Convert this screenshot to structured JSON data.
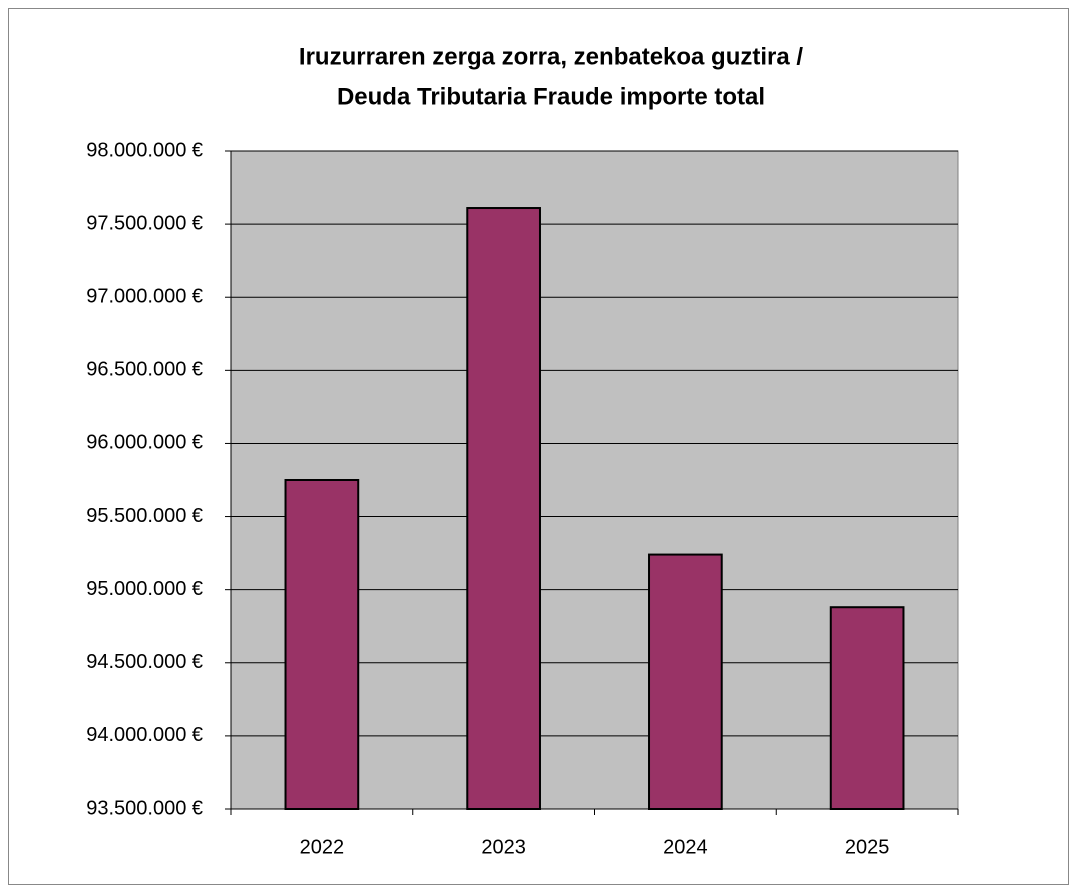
{
  "chart_data": {
    "type": "bar",
    "title": [
      "Iruzurraren zerga zorra, zenbatekoa guztira /",
      "Deuda Tributaria Fraude importe total"
    ],
    "categories": [
      "2022",
      "2023",
      "2024",
      "2025"
    ],
    "values": [
      95750000,
      97610000,
      95240000,
      94880000
    ],
    "color": "#993366",
    "ylim": [
      93500000,
      98000000
    ],
    "yticks": [
      {
        "value": 93500000,
        "label": "93.500.000 €"
      },
      {
        "value": 94000000,
        "label": "94.000.000 €"
      },
      {
        "value": 94500000,
        "label": "94.500.000 €"
      },
      {
        "value": 95000000,
        "label": "95.000.000 €"
      },
      {
        "value": 95500000,
        "label": "95.500.000 €"
      },
      {
        "value": 96000000,
        "label": "96.000.000 €"
      },
      {
        "value": 96500000,
        "label": "96.500.000 €"
      },
      {
        "value": 97000000,
        "label": "97.000.000 €"
      },
      {
        "value": 97500000,
        "label": "97.500.000 €"
      },
      {
        "value": 98000000,
        "label": "98.000.000 €"
      }
    ],
    "grid": true
  }
}
